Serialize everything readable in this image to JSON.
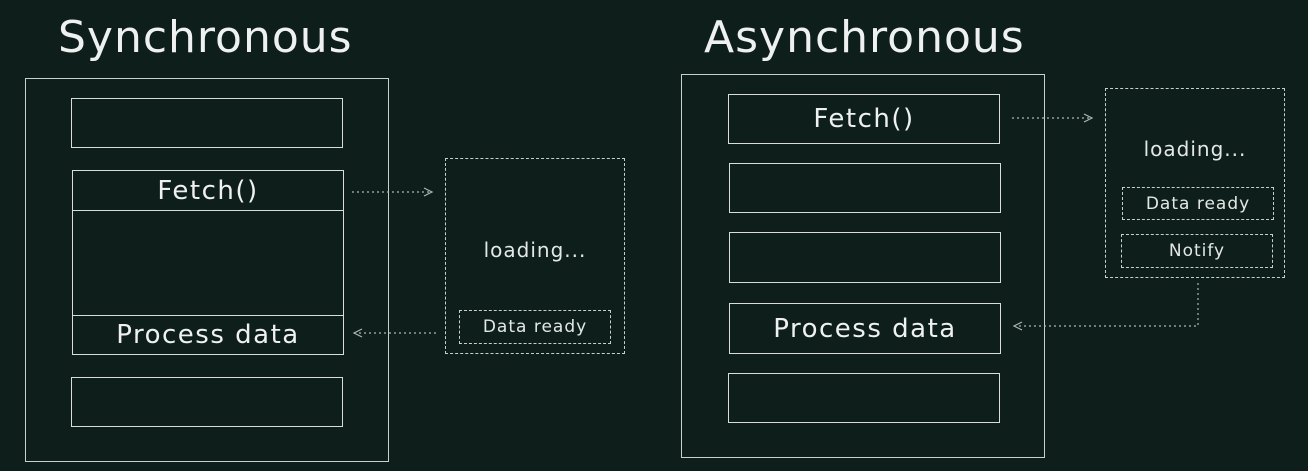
{
  "sync": {
    "title": "Synchronous",
    "fetch_label": "Fetch()",
    "process_label": "Process data",
    "loading_label": "loading...",
    "data_ready_label": "Data ready"
  },
  "async": {
    "title": "Asynchronous",
    "fetch_label": "Fetch()",
    "process_label": "Process data",
    "loading_label": "loading...",
    "data_ready_label": "Data ready",
    "notify_label": "Notify"
  },
  "colors": {
    "background": "#0e1f1b",
    "line": "#c9cfcc",
    "text": "#eef1ef"
  }
}
